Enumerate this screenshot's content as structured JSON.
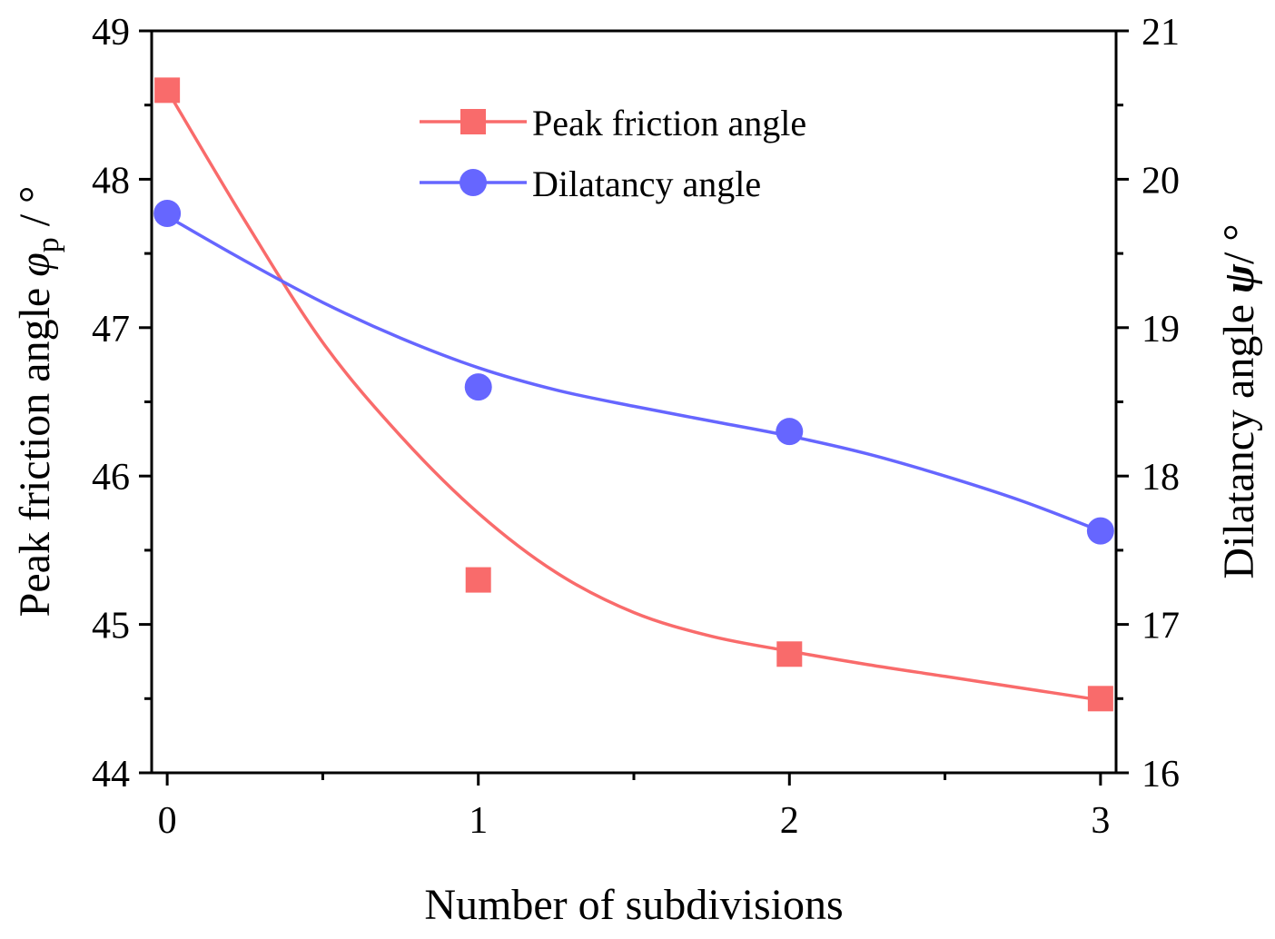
{
  "chart_data": {
    "type": "scatter",
    "x": [
      0,
      1,
      2,
      3
    ],
    "xlabel": "Number of subdivisions",
    "xlim": [
      -0.05,
      3.05
    ],
    "x_ticks": [
      "0",
      "1",
      "2",
      "3"
    ],
    "left_axis": {
      "label_main": "Peak friction angle ",
      "label_symbol": "φ",
      "label_sub": "p",
      "label_unit": " / °",
      "ylim": [
        44,
        49
      ],
      "ticks": [
        "44",
        "45",
        "46",
        "47",
        "48",
        "49"
      ]
    },
    "right_axis": {
      "label_main": "Dilatancy angle ",
      "label_symbol": "ψ",
      "label_unit": "/ °",
      "ylim": [
        16,
        21
      ],
      "ticks": [
        "16",
        "17",
        "18",
        "19",
        "20",
        "21"
      ]
    },
    "series": [
      {
        "name": "Peak friction angle",
        "axis": "left",
        "marker": "square",
        "color": "#f96b6b",
        "values": [
          48.6,
          45.3,
          44.8,
          44.5
        ],
        "fit_curve": [
          [
            0,
            48.6
          ],
          [
            0.25,
            47.72
          ],
          [
            0.5,
            46.9
          ],
          [
            0.75,
            46.27
          ],
          [
            1,
            45.75
          ],
          [
            1.25,
            45.35
          ],
          [
            1.5,
            45.08
          ],
          [
            1.75,
            44.92
          ],
          [
            2,
            44.82
          ],
          [
            2.25,
            44.73
          ],
          [
            2.5,
            44.65
          ],
          [
            2.75,
            44.57
          ],
          [
            3,
            44.49
          ]
        ]
      },
      {
        "name": "Dilatancy angle",
        "axis": "right",
        "marker": "circle",
        "color": "#6666ff",
        "values": [
          19.77,
          18.6,
          18.3,
          17.63
        ],
        "fit_curve": [
          [
            0,
            19.75
          ],
          [
            0.25,
            19.45
          ],
          [
            0.5,
            19.17
          ],
          [
            0.75,
            18.93
          ],
          [
            1,
            18.73
          ],
          [
            1.25,
            18.58
          ],
          [
            1.5,
            18.47
          ],
          [
            1.75,
            18.37
          ],
          [
            2,
            18.27
          ],
          [
            2.25,
            18.15
          ],
          [
            2.5,
            18.0
          ],
          [
            2.75,
            17.83
          ],
          [
            3,
            17.63
          ]
        ]
      }
    ],
    "legend": "top-center",
    "grid": false
  }
}
